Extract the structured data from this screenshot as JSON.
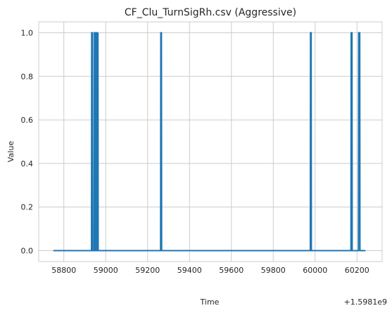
{
  "chart_data": {
    "type": "line",
    "title": "CF_Clu_TurnSigRh.csv (Aggressive)",
    "xlabel": "Time",
    "ylabel": "Value",
    "x_offset_label": "+1.5981e9",
    "xlim": [
      58680,
      60320
    ],
    "ylim": [
      -0.05,
      1.05
    ],
    "x_ticks": [
      58800,
      59000,
      59200,
      59400,
      59600,
      59800,
      60000,
      60200
    ],
    "y_ticks": [
      "0.0",
      "0.2",
      "0.4",
      "0.6",
      "0.8",
      "1.0"
    ],
    "grid": true,
    "series": [
      {
        "color": "#1f77b4",
        "x": [
          58750,
          58932,
          58933,
          58937,
          58938,
          58945,
          58946,
          58948,
          58949,
          58951,
          58952,
          58954,
          58955,
          58957,
          58958,
          58960,
          58961,
          58963,
          58964,
          59262,
          59263,
          59266,
          59267,
          59977,
          59978,
          59981,
          59982,
          60171,
          60172,
          60176,
          60177,
          60207,
          60208,
          60213,
          60214,
          60240
        ],
        "y": [
          0,
          0,
          1,
          1,
          0,
          0,
          1,
          1,
          0,
          0,
          1,
          1,
          0,
          0,
          1,
          1,
          0,
          1,
          0,
          0,
          1,
          1,
          0,
          0,
          1,
          1,
          0,
          0,
          1,
          1,
          0,
          0,
          1,
          1,
          0,
          0
        ]
      }
    ]
  }
}
